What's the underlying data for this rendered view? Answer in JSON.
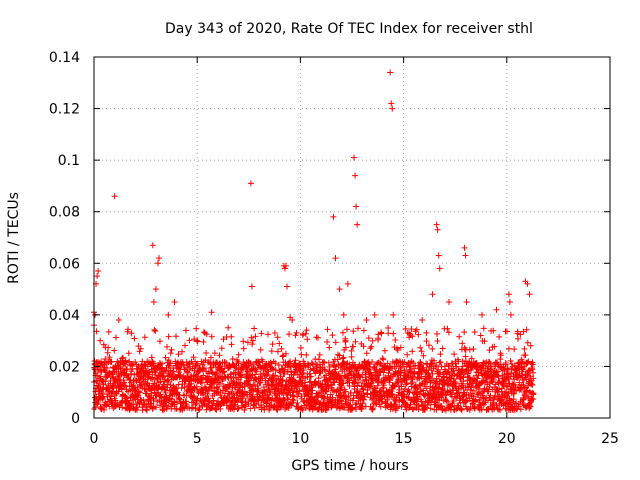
{
  "chart_data": {
    "type": "scatter",
    "title": "Day 343 of 2020, Rate Of TEC Index for receiver sthl",
    "xlabel": "GPS time / hours",
    "ylabel": "ROTI / TECUs",
    "xlim": [
      0,
      25
    ],
    "ylim": [
      0,
      0.14
    ],
    "xticks": [
      0,
      5,
      10,
      15,
      20,
      25
    ],
    "xtick_labels": [
      "0",
      "5",
      "10",
      "15",
      "20",
      "25"
    ],
    "yticks": [
      0,
      0.02,
      0.04,
      0.06,
      0.08,
      0.1,
      0.12,
      0.14
    ],
    "ytick_labels": [
      "0",
      "0.02",
      "0.04",
      "0.06",
      "0.08",
      "0.1",
      "0.12",
      "0.14"
    ],
    "grid": true,
    "marker": "+",
    "color": "#ff0000",
    "series": [
      {
        "name": "ROTI",
        "x": [
          0.0,
          0.0,
          0.05,
          0.1,
          0.15,
          0.2,
          0.3,
          1.0,
          1.2,
          2.85,
          2.9,
          3.0,
          3.1,
          3.15,
          3.6,
          3.9,
          5.7,
          6.5,
          7.6,
          7.65,
          7.7,
          9.2,
          9.25,
          9.3,
          9.35,
          9.5,
          9.6,
          11.6,
          11.7,
          11.9,
          12.1,
          12.3,
          12.6,
          12.65,
          12.7,
          12.75,
          13.2,
          13.6,
          14.35,
          14.4,
          14.45,
          14.5,
          15.9,
          16.4,
          16.6,
          16.65,
          16.7,
          16.75,
          17.2,
          17.95,
          18.0,
          18.05,
          18.8,
          19.5,
          20.1,
          20.15,
          20.2,
          20.9,
          21.0,
          21.1
        ],
        "y": [
          0.041,
          0.036,
          0.04,
          0.052,
          0.055,
          0.057,
          0.03,
          0.086,
          0.038,
          0.067,
          0.045,
          0.05,
          0.06,
          0.062,
          0.04,
          0.045,
          0.041,
          0.035,
          0.091,
          0.051,
          0.03,
          0.059,
          0.058,
          0.059,
          0.051,
          0.039,
          0.038,
          0.078,
          0.062,
          0.05,
          0.04,
          0.052,
          0.101,
          0.094,
          0.082,
          0.075,
          0.038,
          0.04,
          0.134,
          0.122,
          0.12,
          0.04,
          0.038,
          0.048,
          0.075,
          0.073,
          0.063,
          0.058,
          0.045,
          0.066,
          0.063,
          0.045,
          0.04,
          0.042,
          0.048,
          0.045,
          0.04,
          0.053,
          0.052,
          0.048
        ]
      }
    ],
    "bulk_density": {
      "x_range": [
        0,
        21.3
      ],
      "y_low": 0.0,
      "y_high": 0.035,
      "typical_high": 0.022
    }
  }
}
